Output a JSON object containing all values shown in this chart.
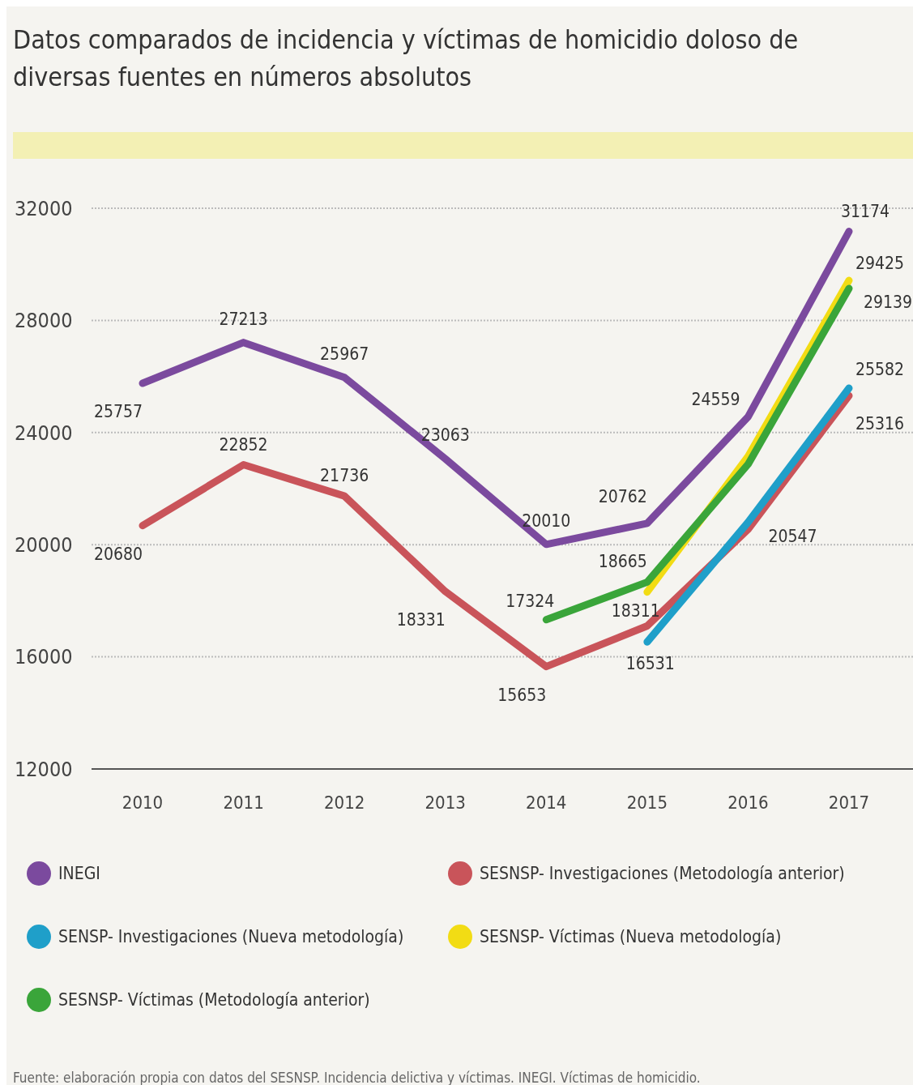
{
  "chart_data": {
    "type": "line",
    "title": "Datos comparados de incidencia y víctimas de homicidio doloso de diversas fuentes en números absolutos",
    "categories": [
      "2010",
      "2011",
      "2012",
      "2013",
      "2014",
      "2015",
      "2016",
      "2017"
    ],
    "series": [
      {
        "name": "INEGI",
        "color": "#7b4a9e",
        "values": [
          25757,
          27213,
          25967,
          23063,
          20010,
          20762,
          24559,
          31174
        ],
        "value_labels": [
          "25757",
          "27213",
          "25967",
          "23063",
          "20010",
          "20762",
          "24559",
          "31174"
        ]
      },
      {
        "name": "SESNSP- Investigaciones (Metodología anterior)",
        "color": "#c9545a",
        "values": [
          20680,
          22852,
          21736,
          18331,
          15653,
          17100,
          20547,
          25316
        ],
        "value_labels": [
          "20680",
          "22852",
          "21736",
          "18331",
          "15653",
          null,
          "20547",
          "25316"
        ]
      },
      {
        "name": "SENSP- Investigaciones (Nueva metodología)",
        "color": "#1f9fc9",
        "values": [
          null,
          null,
          null,
          null,
          null,
          16531,
          20800,
          25582
        ],
        "value_labels": [
          null,
          null,
          null,
          null,
          null,
          "16531",
          null,
          "25582"
        ]
      },
      {
        "name": "SESNSP- Víctimas (Nueva metodología)",
        "color": "#f2dc14",
        "values": [
          null,
          null,
          null,
          null,
          null,
          18311,
          23150,
          29425
        ],
        "value_labels": [
          null,
          null,
          null,
          null,
          null,
          "18311",
          null,
          "29425"
        ]
      },
      {
        "name": "SESNSP- Víctimas (Metodología anterior)",
        "color": "#3aa53a",
        "values": [
          null,
          null,
          null,
          null,
          17324,
          18665,
          22870,
          29139
        ],
        "value_labels": [
          null,
          null,
          null,
          null,
          "17324",
          "18665",
          null,
          "29139"
        ]
      }
    ],
    "ylim": [
      12000,
      32000
    ],
    "yticks": [
      12000,
      16000,
      20000,
      24000,
      28000,
      32000
    ],
    "grid": "y",
    "legend": "bottom",
    "marker": "none",
    "line_style": "solid",
    "annotations": [
      "Fuente: elaboración propia con datos del SESNSP. Incidencia delictiva y víctimas. INEGI. Víctimas de homicidio."
    ]
  }
}
